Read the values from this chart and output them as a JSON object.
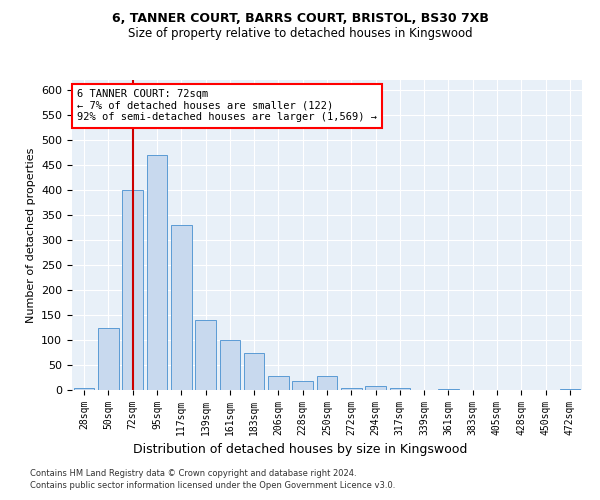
{
  "title_line1": "6, TANNER COURT, BARRS COURT, BRISTOL, BS30 7XB",
  "title_line2": "Size of property relative to detached houses in Kingswood",
  "xlabel": "Distribution of detached houses by size in Kingswood",
  "ylabel": "Number of detached properties",
  "annotation_title": "6 TANNER COURT: 72sqm",
  "annotation_line1": "← 7% of detached houses are smaller (122)",
  "annotation_line2": "92% of semi-detached houses are larger (1,569) →",
  "footer_line1": "Contains HM Land Registry data © Crown copyright and database right 2024.",
  "footer_line2": "Contains public sector information licensed under the Open Government Licence v3.0.",
  "bar_color": "#c8d9ee",
  "bar_edge_color": "#5b9bd5",
  "marker_color": "#cc0000",
  "categories": [
    "28sqm",
    "50sqm",
    "72sqm",
    "95sqm",
    "117sqm",
    "139sqm",
    "161sqm",
    "183sqm",
    "206sqm",
    "228sqm",
    "250sqm",
    "272sqm",
    "294sqm",
    "317sqm",
    "339sqm",
    "361sqm",
    "383sqm",
    "405sqm",
    "428sqm",
    "450sqm",
    "472sqm"
  ],
  "values": [
    5,
    125,
    400,
    470,
    330,
    140,
    100,
    75,
    28,
    18,
    28,
    5,
    8,
    4,
    0,
    2,
    0,
    0,
    1,
    0,
    2
  ],
  "ylim": [
    0,
    620
  ],
  "yticks": [
    0,
    50,
    100,
    150,
    200,
    250,
    300,
    350,
    400,
    450,
    500,
    550,
    600
  ],
  "property_sqm_label": "72sqm",
  "background_color": "#e8f0f8",
  "plot_bg_color": "#e8f0f8"
}
